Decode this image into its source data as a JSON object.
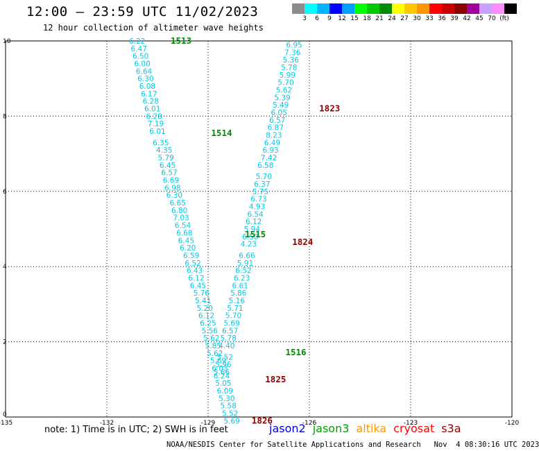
{
  "header": {
    "title": "12:00 – 23:59 UTC 11/02/2023",
    "subtitle": "12 hour collection of altimeter wave heights"
  },
  "colorbar": {
    "colors": [
      "#8c8c8c",
      "#00ffff",
      "#00b4ff",
      "#0000ff",
      "#00a0ff",
      "#00ff00",
      "#00c800",
      "#008c00",
      "#ffff00",
      "#ffc800",
      "#ff9600",
      "#ff0000",
      "#c80000",
      "#8c0000",
      "#a000a0",
      "#c8a0ff",
      "#ff8cff",
      "#000000"
    ],
    "labels": [
      "3",
      "6",
      "9",
      "12",
      "15",
      "18",
      "21",
      "24",
      "27",
      "30",
      "33",
      "36",
      "39",
      "42",
      "45",
      "70",
      "(ft)"
    ]
  },
  "footer": {
    "note": "note: 1) Time is in UTC; 2) SWH is in feet",
    "credit": "NOAA/NESDIS Center for Satellite Applications and Research   Nov  4 08:30:16 UTC 2023",
    "legend": [
      {
        "label": "jason2",
        "color": "#0000dc"
      },
      {
        "label": "jason3",
        "color": "#00a000"
      },
      {
        "label": "altika",
        "color": "#ff9600"
      },
      {
        "label": "cryosat",
        "color": "#ff0000"
      },
      {
        "label": "s3a",
        "color": "#8c0000"
      }
    ]
  },
  "chart_data": {
    "type": "scatter",
    "xlim": [
      -135,
      -120
    ],
    "ylim": [
      0,
      10
    ],
    "xticks": [
      "-135",
      "-132",
      "-129",
      "-126",
      "-123",
      "-120"
    ],
    "yticks": [
      "0",
      "2",
      "4",
      "6",
      "8",
      "10"
    ],
    "grid": true,
    "value_color": "#00c8e6",
    "series": [
      {
        "name": "jason3",
        "color": "#008c00",
        "passes": [
          {
            "label": "1513",
            "x": -129.8,
            "y": 10.0
          },
          {
            "label": "1514",
            "x": -128.6,
            "y": 7.55
          },
          {
            "label": "1515",
            "x": -127.6,
            "y": 4.85
          },
          {
            "label": "1516",
            "x": -126.4,
            "y": 1.72
          }
        ],
        "points": [
          {
            "x": -131.1,
            "y": 10.0,
            "v": "6.22"
          },
          {
            "x": -131.05,
            "y": 9.8,
            "v": "6.47"
          },
          {
            "x": -131.0,
            "y": 9.6,
            "v": "6.50"
          },
          {
            "x": -130.95,
            "y": 9.4,
            "v": "6.00"
          },
          {
            "x": -130.9,
            "y": 9.2,
            "v": "6.64"
          },
          {
            "x": -130.85,
            "y": 9.0,
            "v": "6.30"
          },
          {
            "x": -130.8,
            "y": 8.8,
            "v": "6.08"
          },
          {
            "x": -130.75,
            "y": 8.6,
            "v": "6.17"
          },
          {
            "x": -130.7,
            "y": 8.4,
            "v": "6.28"
          },
          {
            "x": -130.65,
            "y": 8.2,
            "v": "6.01"
          },
          {
            "x": -130.6,
            "y": 8.0,
            "v": "6.28"
          },
          {
            "x": -130.55,
            "y": 7.8,
            "v": "7.19"
          },
          {
            "x": -130.5,
            "y": 7.6,
            "v": "6.01"
          },
          {
            "x": -130.4,
            "y": 7.3,
            "v": "6.35"
          },
          {
            "x": -130.3,
            "y": 7.1,
            "v": "4.35"
          },
          {
            "x": -130.25,
            "y": 6.9,
            "v": "5.79"
          },
          {
            "x": -130.2,
            "y": 6.7,
            "v": "6.45"
          },
          {
            "x": -130.15,
            "y": 6.5,
            "v": "6.57"
          },
          {
            "x": -130.1,
            "y": 6.3,
            "v": "6.69"
          },
          {
            "x": -130.05,
            "y": 6.1,
            "v": "6.98"
          },
          {
            "x": -130.0,
            "y": 5.9,
            "v": "6.30"
          },
          {
            "x": -129.9,
            "y": 5.7,
            "v": "6.65"
          },
          {
            "x": -129.85,
            "y": 5.5,
            "v": "6.80"
          },
          {
            "x": -129.8,
            "y": 5.3,
            "v": "7.03"
          },
          {
            "x": -129.75,
            "y": 5.1,
            "v": "6.54"
          },
          {
            "x": -129.7,
            "y": 4.9,
            "v": "6.68"
          },
          {
            "x": -129.65,
            "y": 4.7,
            "v": "6.45"
          },
          {
            "x": -129.6,
            "y": 4.5,
            "v": "6.20"
          },
          {
            "x": -129.5,
            "y": 4.3,
            "v": "6.59"
          },
          {
            "x": -129.45,
            "y": 4.1,
            "v": "6.52"
          },
          {
            "x": -129.4,
            "y": 3.9,
            "v": "6.43"
          },
          {
            "x": -129.35,
            "y": 3.7,
            "v": "6.12"
          },
          {
            "x": -129.3,
            "y": 3.5,
            "v": "6.45"
          },
          {
            "x": -129.2,
            "y": 3.3,
            "v": "5.76"
          },
          {
            "x": -129.15,
            "y": 3.1,
            "v": "5.41"
          },
          {
            "x": -129.1,
            "y": 2.9,
            "v": "5.20"
          },
          {
            "x": -129.05,
            "y": 2.7,
            "v": "6.12"
          },
          {
            "x": -129.0,
            "y": 2.5,
            "v": "6.25"
          },
          {
            "x": -128.95,
            "y": 2.3,
            "v": "5.56"
          },
          {
            "x": -128.9,
            "y": 2.1,
            "v": "5.62"
          },
          {
            "x": -128.85,
            "y": 1.9,
            "v": "5.85"
          },
          {
            "x": -128.8,
            "y": 1.7,
            "v": "5.62"
          },
          {
            "x": -128.7,
            "y": 1.5,
            "v": "5.69"
          },
          {
            "x": -128.65,
            "y": 1.3,
            "v": "6.03"
          },
          {
            "x": -128.6,
            "y": 1.1,
            "v": "6.24"
          },
          {
            "x": -128.55,
            "y": 0.9,
            "v": "5.05"
          },
          {
            "x": -128.5,
            "y": 0.7,
            "v": "6.09"
          },
          {
            "x": -128.45,
            "y": 0.5,
            "v": "5.30"
          },
          {
            "x": -128.4,
            "y": 0.3,
            "v": "5.58"
          },
          {
            "x": -128.35,
            "y": 0.1,
            "v": "5.52"
          },
          {
            "x": -128.3,
            "y": -0.1,
            "v": "5.69"
          }
        ]
      },
      {
        "name": "s3a",
        "color": "#8c0000",
        "passes": [
          {
            "label": "1823",
            "x": -125.4,
            "y": 8.2
          },
          {
            "label": "1824",
            "x": -126.2,
            "y": 4.65
          },
          {
            "label": "1825",
            "x": -127.0,
            "y": 1.0
          },
          {
            "label": "1826",
            "x": -127.4,
            "y": -0.1
          }
        ],
        "points": [
          {
            "x": -126.45,
            "y": 9.9,
            "v": "6.95"
          },
          {
            "x": -126.5,
            "y": 9.7,
            "v": "7.36"
          },
          {
            "x": -126.55,
            "y": 9.5,
            "v": "5.36"
          },
          {
            "x": -126.6,
            "y": 9.3,
            "v": "5.78"
          },
          {
            "x": -126.65,
            "y": 9.1,
            "v": "5.99"
          },
          {
            "x": -126.7,
            "y": 8.9,
            "v": "5.70"
          },
          {
            "x": -126.75,
            "y": 8.7,
            "v": "5.62"
          },
          {
            "x": -126.8,
            "y": 8.5,
            "v": "5.39"
          },
          {
            "x": -126.85,
            "y": 8.3,
            "v": "5.49"
          },
          {
            "x": -126.9,
            "y": 8.1,
            "v": "6.05"
          },
          {
            "x": -126.95,
            "y": 7.9,
            "v": "6.57"
          },
          {
            "x": -127.0,
            "y": 7.7,
            "v": "6.87"
          },
          {
            "x": -127.05,
            "y": 7.5,
            "v": "8.23"
          },
          {
            "x": -127.1,
            "y": 7.3,
            "v": "6.49"
          },
          {
            "x": -127.15,
            "y": 7.1,
            "v": "6.93"
          },
          {
            "x": -127.2,
            "y": 6.9,
            "v": "7.42"
          },
          {
            "x": -127.3,
            "y": 6.7,
            "v": "6.58"
          },
          {
            "x": -127.35,
            "y": 6.4,
            "v": "5.70"
          },
          {
            "x": -127.4,
            "y": 6.2,
            "v": "6.37"
          },
          {
            "x": -127.45,
            "y": 6.0,
            "v": "5.75"
          },
          {
            "x": -127.5,
            "y": 5.8,
            "v": "6.73"
          },
          {
            "x": -127.55,
            "y": 5.6,
            "v": "4.93"
          },
          {
            "x": -127.6,
            "y": 5.4,
            "v": "6.54"
          },
          {
            "x": -127.65,
            "y": 5.2,
            "v": "6.12"
          },
          {
            "x": -127.7,
            "y": 5.0,
            "v": "5.94"
          },
          {
            "x": -127.75,
            "y": 4.8,
            "v": "6.50"
          },
          {
            "x": -127.8,
            "y": 4.6,
            "v": "4.23"
          },
          {
            "x": -127.85,
            "y": 4.3,
            "v": "6.66"
          },
          {
            "x": -127.9,
            "y": 4.1,
            "v": "5.91"
          },
          {
            "x": -127.95,
            "y": 3.9,
            "v": "6.52"
          },
          {
            "x": -128.0,
            "y": 3.7,
            "v": "6.23"
          },
          {
            "x": -128.05,
            "y": 3.5,
            "v": "6.61"
          },
          {
            "x": -128.1,
            "y": 3.3,
            "v": "5.86"
          },
          {
            "x": -128.15,
            "y": 3.1,
            "v": "5.16"
          },
          {
            "x": -128.2,
            "y": 2.9,
            "v": "5.71"
          },
          {
            "x": -128.25,
            "y": 2.7,
            "v": "5.70"
          },
          {
            "x": -128.3,
            "y": 2.5,
            "v": "5.69"
          },
          {
            "x": -128.35,
            "y": 2.3,
            "v": "6.57"
          },
          {
            "x": -128.4,
            "y": 2.1,
            "v": "5.78"
          },
          {
            "x": -128.45,
            "y": 1.9,
            "v": "4.40"
          },
          {
            "x": -128.5,
            "y": 1.6,
            "v": "5.52"
          },
          {
            "x": -128.55,
            "y": 1.4,
            "v": "5.96"
          },
          {
            "x": -128.6,
            "y": 1.2,
            "v": "5.66"
          }
        ]
      }
    ]
  }
}
